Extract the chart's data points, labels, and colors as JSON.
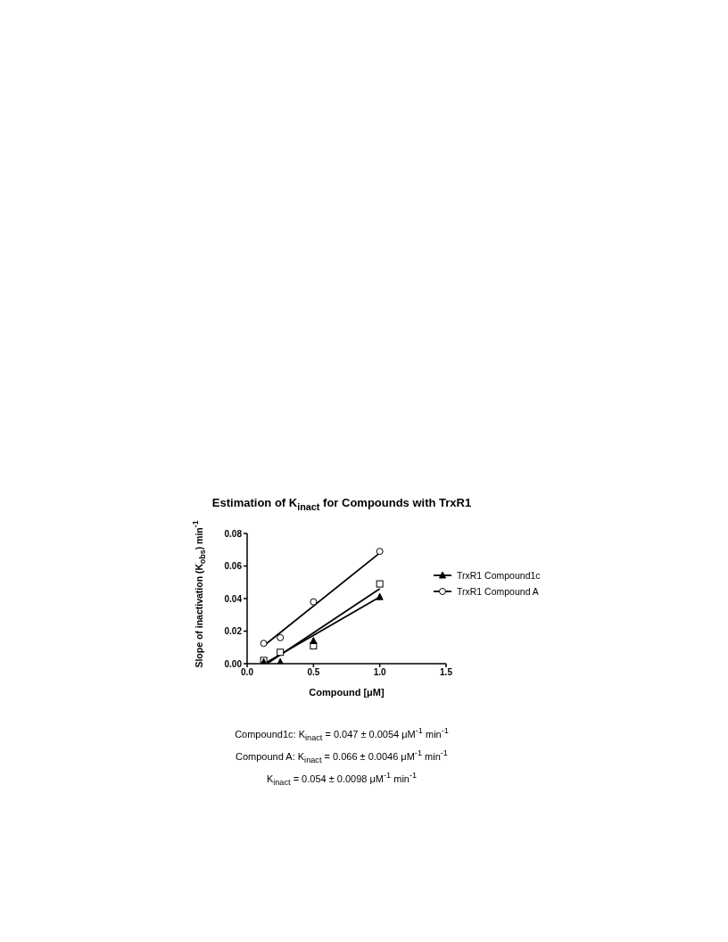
{
  "chart_data": {
    "type": "scatter",
    "title": "Estimation of K$_{inact}$ for Compounds with TrxR1",
    "xlabel": "Compound [μM]",
    "ylabel": "Slope of inactivation (K$_{obs}$) min$^{-1}$",
    "xlim": [
      0,
      1.5
    ],
    "xticks": [
      {
        "value": 0,
        "label": "0.0"
      },
      0.5,
      {
        "value": 1,
        "label": "1.0"
      },
      1.5
    ],
    "ylim": [
      0,
      0.08
    ],
    "yticks": [
      {
        "value": 0,
        "label": "0.00"
      },
      0.02,
      0.04,
      0.06,
      0.08
    ],
    "legend": "right",
    "grid": false,
    "series": [
      {
        "name": "TrxR1 Compound1c",
        "marker": "triangle",
        "color": "#000000",
        "x": [
          0.125,
          0.25,
          0.5,
          1.0
        ],
        "values": [
          0.001,
          0.001,
          0.014,
          0.041
        ]
      },
      {
        "name": "TrxR1 Compound A",
        "marker": "circle",
        "color": "#000000",
        "x": [
          0.125,
          0.25,
          0.5,
          1.0
        ],
        "values": [
          0.0125,
          0.016,
          0.038,
          0.069
        ]
      },
      {
        "marker": "square",
        "color": "#000000",
        "x": [
          0.125,
          0.25,
          0.5,
          1.0
        ],
        "values": [
          0.002,
          0.007,
          0.011,
          0.049
        ]
      },
      {
        "type": "line",
        "color": "#000000",
        "x": [
          0.13,
          1.0
        ],
        "values": [
          0,
          0.041
        ]
      },
      {
        "type": "line",
        "color": "#000000",
        "x": [
          0.125,
          1.0
        ],
        "values": [
          0.011,
          0.068
        ]
      },
      {
        "type": "line",
        "color": "#000000",
        "x": [
          0.15,
          1.0
        ],
        "values": [
          0,
          0.046
        ]
      }
    ],
    "annotations": [
      "Compound1c: K$_{inact}$ = 0.047 ± 0.0054 μM$^{-1}$ min$^{-1}$",
      "Compound A:  K$_{inact}$ = 0.066 ± 0.0046 μM$^{-1}$ min$^{-1}$",
      "K$_{inact}$ = 0.054 ± 0.0098 μM$^{-1}$ min$^{-1}$"
    ]
  }
}
